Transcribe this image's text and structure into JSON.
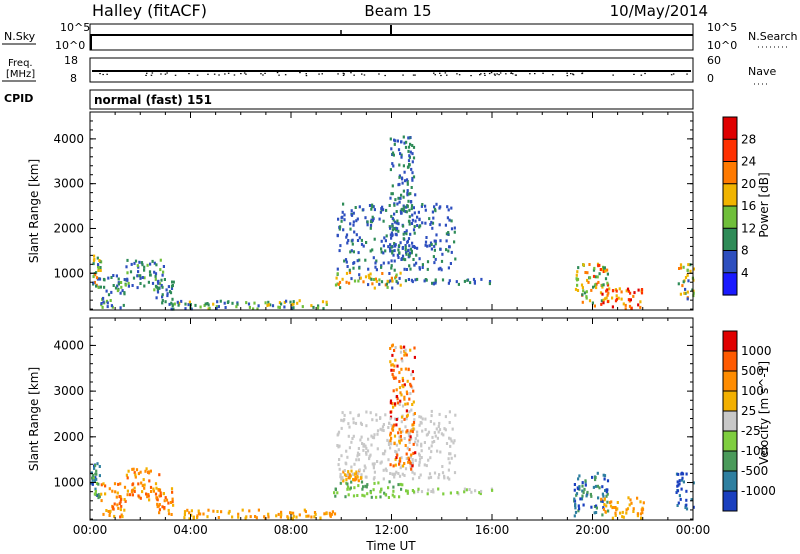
{
  "header": {
    "station": "Halley (fitACF)",
    "beam": "Beam 15",
    "date": "10/May/2014"
  },
  "noise_panel": {
    "left_label": "N.Sky",
    "left_ticks": [
      "10^5",
      "10^0"
    ],
    "right_ticks": [
      "10^5",
      "10^0"
    ],
    "right_label": "N.Search"
  },
  "freq_panel": {
    "left_label_1": "Freq.",
    "left_label_2": "[MHz]",
    "left_ticks": [
      "18",
      "8"
    ],
    "right_ticks": [
      "60",
      "0"
    ],
    "right_label": "Nave"
  },
  "cpid": {
    "label": "CPID",
    "value": "normal (fast) 151"
  },
  "colors": {
    "power": [
      "#1a1aff",
      "#2e4fbf",
      "#2e8b57",
      "#6fbf3a",
      "#f0b400",
      "#ff7a00",
      "#ff3000",
      "#e00000"
    ],
    "velocity": [
      "#1a3fbf",
      "#2e7fa0",
      "#4a9a5a",
      "#7fce3f",
      "#c8c8c8",
      "#f3b000",
      "#ff8c00",
      "#ff5a00",
      "#e00000"
    ]
  },
  "chart_data": [
    {
      "type": "heatmap",
      "name": "power",
      "ylabel": "Slant Range [km]",
      "yticks": [
        "1000",
        "2000",
        "3000",
        "4000"
      ],
      "ylim": [
        180,
        4600
      ],
      "xlim": [
        0,
        24
      ],
      "colorbar_label": "Power [dB]",
      "colorbar_ticks": [
        "4",
        "8",
        "12",
        "16",
        "20",
        "24",
        "28"
      ],
      "colorbar_range": [
        0,
        32
      ],
      "regions": [
        {
          "t0": 0.0,
          "t1": 0.4,
          "r0": 700,
          "r1": 1450,
          "v0": 4,
          "v1": 22
        },
        {
          "t0": 0.4,
          "t1": 1.4,
          "r0": 250,
          "r1": 1050,
          "v0": 4,
          "v1": 16
        },
        {
          "t0": 1.4,
          "t1": 2.9,
          "r0": 650,
          "r1": 1350,
          "v0": 4,
          "v1": 14
        },
        {
          "t0": 2.6,
          "t1": 3.3,
          "r0": 300,
          "r1": 900,
          "v0": 4,
          "v1": 12
        },
        {
          "t0": 3.2,
          "t1": 9.8,
          "r0": 230,
          "r1": 430,
          "v0": 6,
          "v1": 18
        },
        {
          "t0": 9.6,
          "t1": 12.4,
          "r0": 700,
          "r1": 1050,
          "v0": 6,
          "v1": 24
        },
        {
          "t0": 9.8,
          "t1": 14.5,
          "r0": 1100,
          "r1": 2600,
          "v0": 4,
          "v1": 10
        },
        {
          "t0": 11.9,
          "t1": 12.9,
          "r0": 1300,
          "r1": 4100,
          "v0": 4,
          "v1": 12
        },
        {
          "t0": 12.5,
          "t1": 16.0,
          "r0": 780,
          "r1": 900,
          "v0": 4,
          "v1": 10
        },
        {
          "t0": 19.2,
          "t1": 20.6,
          "r0": 300,
          "r1": 1250,
          "v0": 8,
          "v1": 26
        },
        {
          "t0": 20.3,
          "t1": 22.0,
          "r0": 230,
          "r1": 700,
          "v0": 16,
          "v1": 32
        },
        {
          "t0": 23.3,
          "t1": 24.0,
          "r0": 450,
          "r1": 1250,
          "v0": 6,
          "v1": 24
        }
      ]
    },
    {
      "type": "heatmap",
      "name": "velocity",
      "ylabel": "Slant Range [km]",
      "yticks": [
        "1000",
        "2000",
        "3000",
        "4000"
      ],
      "ylim": [
        180,
        4600
      ],
      "xlabel": "Time UT",
      "xticks": [
        "00:00",
        "04:00",
        "08:00",
        "12:00",
        "16:00",
        "20:00",
        "00:00"
      ],
      "xlim": [
        0,
        24
      ],
      "colorbar_label": "Velocity [m s^-1]",
      "colorbar_ticks": [
        "1000",
        "500",
        "100",
        "25",
        "-25",
        "-100",
        "-500",
        "-1000"
      ],
      "regions": [
        {
          "t0": 0.0,
          "t1": 0.4,
          "r0": 700,
          "r1": 1450,
          "v0": 0,
          "v1": 3
        },
        {
          "t0": 0.4,
          "t1": 1.4,
          "r0": 250,
          "r1": 1050,
          "v0": 5,
          "v1": 7
        },
        {
          "t0": 1.4,
          "t1": 2.9,
          "r0": 650,
          "r1": 1350,
          "v0": 5,
          "v1": 7
        },
        {
          "t0": 2.6,
          "t1": 3.3,
          "r0": 300,
          "r1": 900,
          "v0": 5,
          "v1": 7
        },
        {
          "t0": 3.2,
          "t1": 9.8,
          "r0": 230,
          "r1": 430,
          "v0": 5,
          "v1": 6
        },
        {
          "t0": 9.6,
          "t1": 12.4,
          "r0": 700,
          "r1": 1050,
          "v0": 2,
          "v1": 3
        },
        {
          "t0": 10.0,
          "t1": 10.8,
          "r0": 1050,
          "r1": 1300,
          "v0": 5,
          "v1": 6
        },
        {
          "t0": 9.8,
          "t1": 14.5,
          "r0": 1100,
          "r1": 2600,
          "v0": 4,
          "v1": 4
        },
        {
          "t0": 11.9,
          "t1": 12.9,
          "r0": 1300,
          "r1": 4100,
          "v0": 4,
          "v1": 8
        },
        {
          "t0": 12.5,
          "t1": 16.0,
          "r0": 780,
          "r1": 900,
          "v0": 3,
          "v1": 4
        },
        {
          "t0": 19.2,
          "t1": 20.6,
          "r0": 300,
          "r1": 1250,
          "v0": 0,
          "v1": 2
        },
        {
          "t0": 20.3,
          "t1": 22.0,
          "r0": 230,
          "r1": 700,
          "v0": 5,
          "v1": 6
        },
        {
          "t0": 23.3,
          "t1": 24.0,
          "r0": 450,
          "r1": 1250,
          "v0": 0,
          "v1": 1
        }
      ]
    }
  ]
}
